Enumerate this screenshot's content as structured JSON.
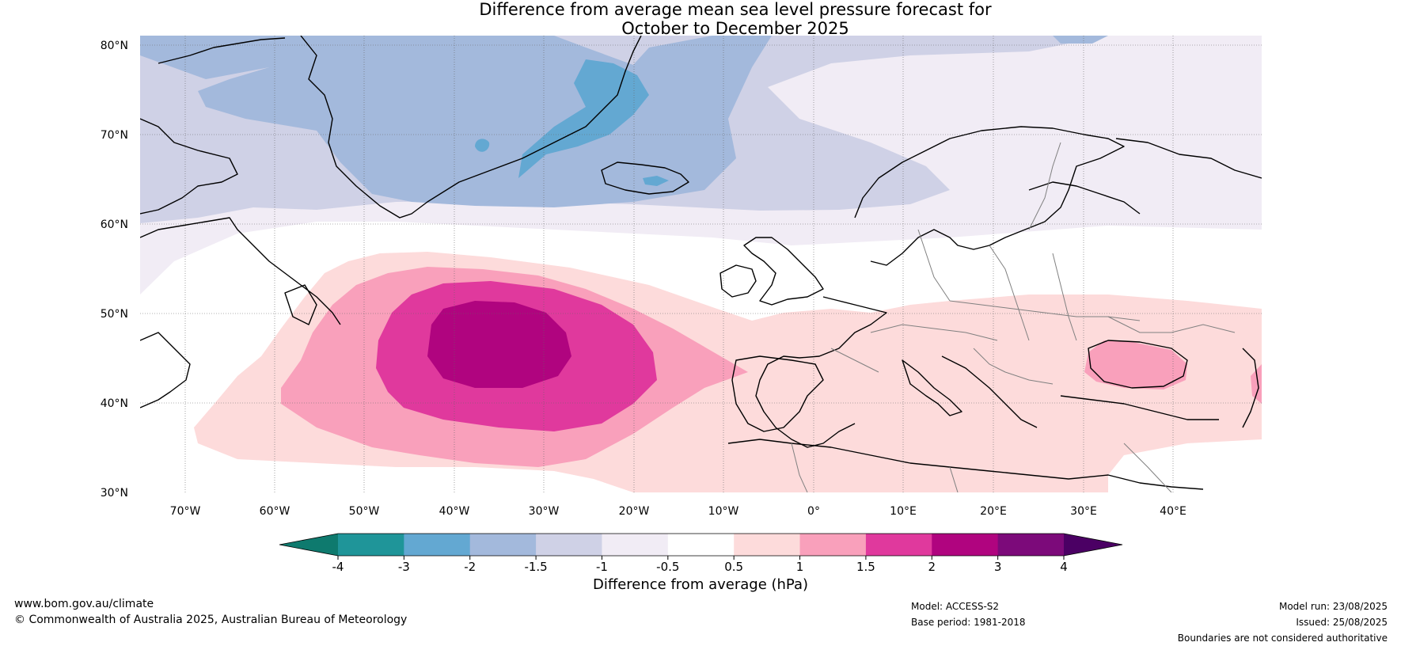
{
  "title_line1": "Difference from average mean sea level pressure forecast for",
  "title_line2": "October to December 2025",
  "lat_labels": [
    "80°N",
    "70°N",
    "60°N",
    "50°N",
    "40°N",
    "30°N"
  ],
  "lon_labels": [
    "70°W",
    "60°W",
    "50°W",
    "40°W",
    "30°W",
    "20°W",
    "10°W",
    "0°",
    "10°E",
    "20°E",
    "30°E",
    "40°E"
  ],
  "colorbar": {
    "title": "Difference from average (hPa)",
    "ticks": [
      "-4",
      "-3",
      "-2",
      "-1.5",
      "-1",
      "-0.5",
      "0.5",
      "1",
      "1.5",
      "2",
      "3",
      "4"
    ],
    "colors": [
      "#0e7a6e",
      "#1f9599",
      "#63a8d2",
      "#a3b9dc",
      "#cfd1e6",
      "#f1ecf5",
      "#ffffff",
      "#fddbdb",
      "#f9a0bb",
      "#e0399d",
      "#b0047f",
      "#7c0a7a",
      "#4b0064"
    ]
  },
  "footer": {
    "website": "www.bom.gov.au/climate",
    "copyright": "© Commonwealth of Australia 2025, Australian Bureau of Meteorology",
    "model": "Model: ACCESS-S2",
    "base_period": "Base period: 1981-2018",
    "model_run": "Model run: 23/08/2025",
    "issued": "Issued: 25/08/2025",
    "boundaries": "Boundaries are not considered authoritative"
  }
}
